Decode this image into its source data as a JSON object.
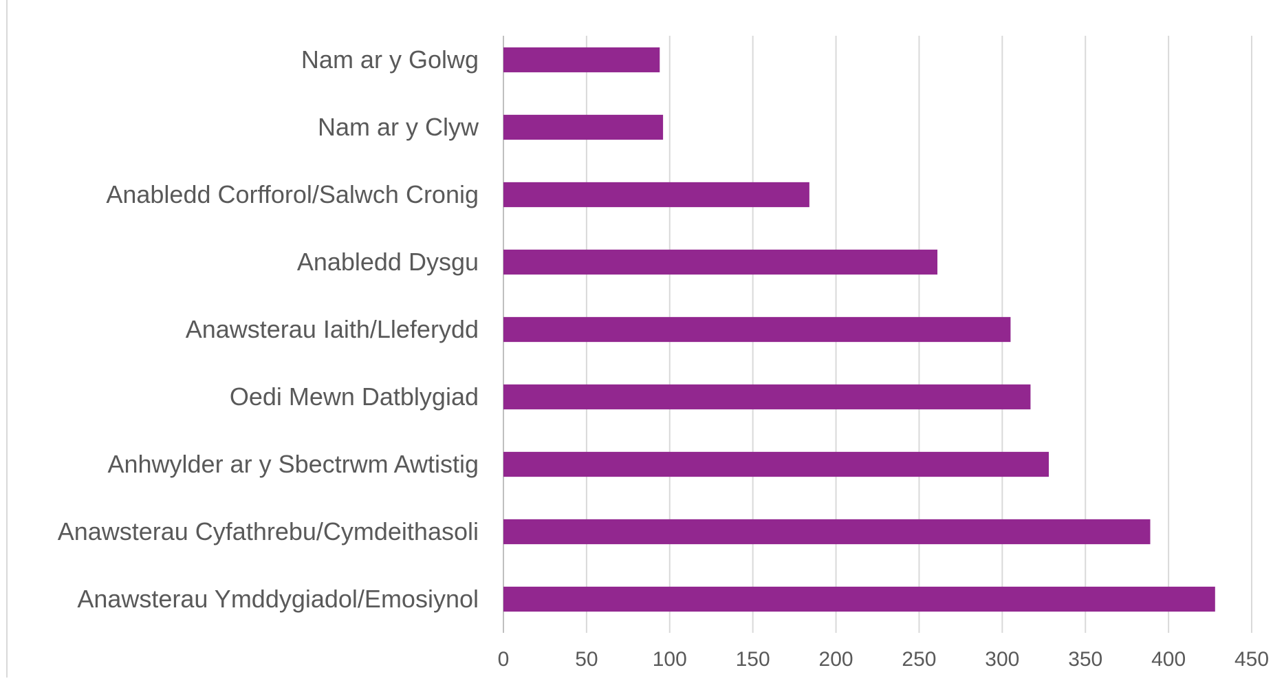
{
  "chart_data": {
    "type": "bar",
    "orientation": "horizontal",
    "categories": [
      "Nam ar y Golwg",
      "Nam ar y Clyw",
      "Anabledd Corfforol/Salwch Cronig",
      "Anabledd Dysgu",
      "Anawsterau Iaith/Lleferydd",
      "Oedi Mewn Datblygiad",
      "Anhwylder ar y Sbectrwm Awtistig",
      "Anawsterau Cyfathrebu/Cymdeithasoli",
      "Anawsterau Ymddygiadol/Emosiynol"
    ],
    "values": [
      94,
      96,
      184,
      261,
      305,
      317,
      328,
      389,
      428
    ],
    "xlim": [
      0,
      450
    ],
    "xticks": [
      "0",
      "50",
      "100",
      "150",
      "200",
      "250",
      "300",
      "350",
      "400",
      "450"
    ],
    "title": "",
    "xlabel": "",
    "ylabel": "",
    "grid": "vertical",
    "legend": "none",
    "colors": {
      "bar": "#92278F",
      "grid": "#D9D9D9",
      "text": "#595959",
      "frame": "#D9D9D9"
    }
  }
}
